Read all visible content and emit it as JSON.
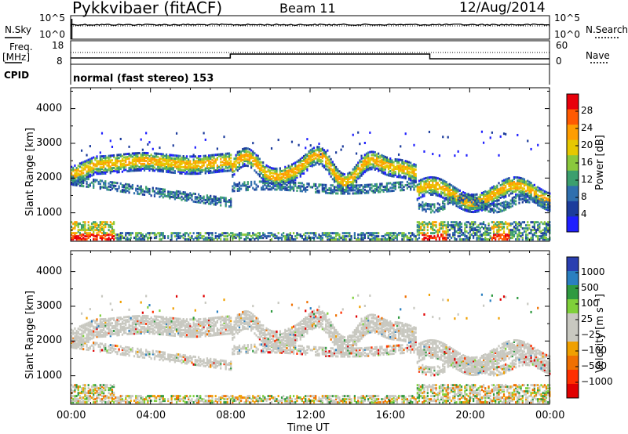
{
  "header": {
    "title": "Pykkvibaer (fitACF)",
    "beam": "Beam 11",
    "date": "12/Aug/2014"
  },
  "strips": {
    "nsky_label": "N.Sky",
    "nsearch_label": "N.Search",
    "freq_label": "Freq.",
    "mhz_label": "[MHz]",
    "nave_label": "Nave",
    "cpid_label": "CPID",
    "cpid_text": "normal (fast stereo) 153",
    "nsky_ticks": [
      "10^5",
      "10^0"
    ],
    "nsearch_ticks": [
      "10^5",
      "10^0"
    ],
    "freq_ticks": [
      "18",
      "8"
    ],
    "nave_ticks": [
      "60",
      "0"
    ]
  },
  "power_panel": {
    "ylabel": "Slant Range [km]",
    "colorbar_label": "Power [dB]",
    "colorbar_ticks": [
      "28",
      "24",
      "20",
      "16",
      "12",
      "8",
      "4"
    ],
    "colorbar_colors": [
      "#e8000b",
      "#ff5a00",
      "#ff9d00",
      "#e6c800",
      "#8ac83c",
      "#3c9f6e",
      "#2f6fae",
      "#1c3c9c",
      "#1f1fff"
    ]
  },
  "velocity_panel": {
    "ylabel": "Slant Range [km]",
    "colorbar_label": "Velocity [m s⁻¹]",
    "colorbar_ticks": [
      "1000",
      "500",
      "100",
      "25",
      "−25",
      "−100",
      "−500",
      "−1000"
    ],
    "colorbar_colors": [
      "#2a3fb0",
      "#2a7fc0",
      "#2f9a40",
      "#7fd03a",
      "#c8c8c0",
      "#c8c8c0",
      "#f0a000",
      "#f07000",
      "#ff3000",
      "#e00000"
    ]
  },
  "xaxis": {
    "label": "Time UT",
    "ticks": [
      "00:00",
      "04:00",
      "08:00",
      "12:00",
      "16:00",
      "20:00",
      "00:00"
    ]
  },
  "chart_data": [
    {
      "type": "heatmap",
      "title": "Power",
      "xlabel": "Time UT",
      "ylabel": "Slant Range [km]",
      "x_hours": [
        0,
        24
      ],
      "ylim": [
        180,
        4600
      ],
      "yticks": [
        1000,
        2000,
        3000,
        4000
      ],
      "value_label": "Power [dB]",
      "value_range": [
        0,
        32
      ],
      "scatter_bands_km": [
        {
          "hours": [
            0,
            8
          ],
          "range_km": [
            1800,
            2600
          ]
        },
        {
          "hours": [
            8,
            17
          ],
          "range_km": [
            1900,
            2700
          ]
        },
        {
          "hours": [
            17,
            24
          ],
          "range_km": [
            1000,
            1900
          ]
        }
      ]
    },
    {
      "type": "heatmap",
      "title": "Velocity",
      "xlabel": "Time UT",
      "ylabel": "Slant Range [km]",
      "x_hours": [
        0,
        24
      ],
      "ylim": [
        180,
        4600
      ],
      "yticks": [
        1000,
        2000,
        3000,
        4000
      ],
      "value_label": "Velocity [m s⁻¹]",
      "value_range": [
        -1000,
        1000
      ]
    }
  ]
}
